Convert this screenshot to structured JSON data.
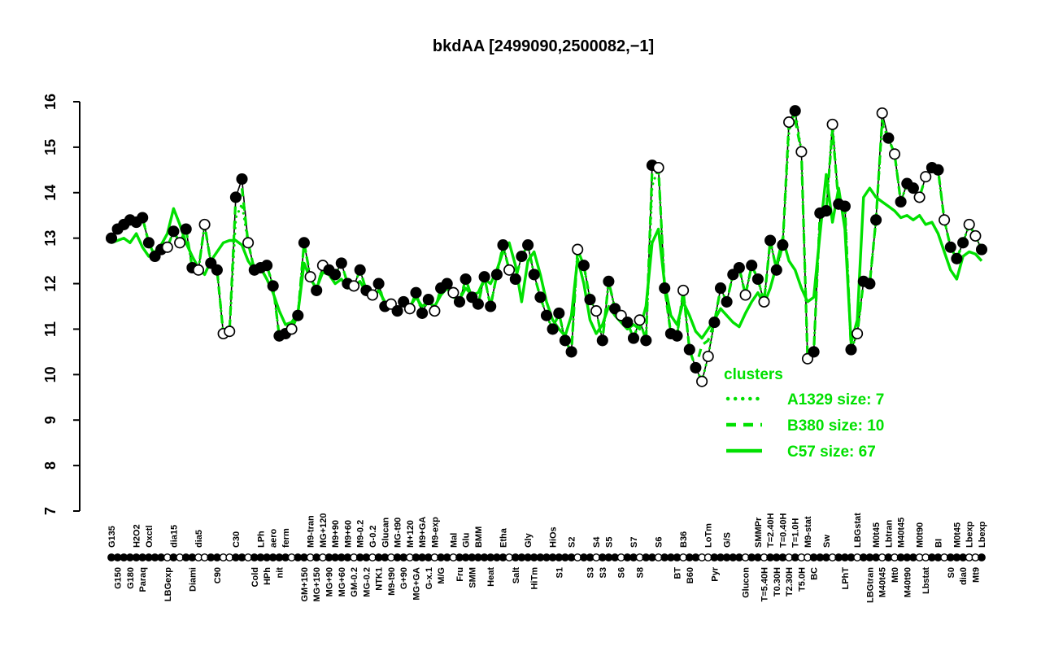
{
  "title": "bkdAA [2499090,2500082,−1]",
  "colors": {
    "cluster_green": "#00E000",
    "ink": "#000000",
    "background": "#FFFFFF"
  },
  "legend": {
    "title": "clusters",
    "position": "right-lower",
    "entries": [
      {
        "label": "A1329 size: 7",
        "style": "dotted",
        "cluster": "A1329",
        "size": 7
      },
      {
        "label": "B380 size: 10",
        "style": "dashed",
        "cluster": "B380",
        "size": 10
      },
      {
        "label": "C57 size: 67",
        "style": "solid",
        "cluster": "C57",
        "size": 67
      }
    ]
  },
  "chart_data": {
    "type": "line",
    "title": "bkdAA [2499090,2500082,−1]",
    "ylabel": "",
    "xlabel": "",
    "ylim": [
      7,
      16
    ],
    "yticks": [
      7,
      8,
      9,
      10,
      11,
      12,
      13,
      14,
      15,
      16
    ],
    "grid": false,
    "x_mode": "categorical-index",
    "marker_legend": "filled and open circles along the curve and condition axis",
    "conditions": [
      {
        "l": "G135",
        "s": "a",
        "v": 13.0,
        "o": 0
      },
      {
        "l": "G150",
        "s": "b",
        "v": 13.2,
        "o": 0
      },
      {
        "l": "",
        "s": "a",
        "v": 13.3,
        "o": 0
      },
      {
        "l": "G180",
        "s": "b",
        "v": 13.4,
        "o": 0
      },
      {
        "l": "H2O2",
        "s": "a",
        "v": 13.35,
        "o": 0
      },
      {
        "l": "Paraq",
        "s": "b",
        "v": 13.45,
        "o": 0
      },
      {
        "l": "Oxctl",
        "s": "a",
        "v": 12.9,
        "o": 0
      },
      {
        "l": "",
        "s": "b",
        "v": 12.6,
        "o": 0
      },
      {
        "l": "",
        "s": "a",
        "v": 12.75,
        "o": 0
      },
      {
        "l": "LBGexp",
        "s": "b",
        "v": 12.8,
        "o": 1
      },
      {
        "l": "dia15",
        "s": "a",
        "v": 13.15,
        "o": 0
      },
      {
        "l": "",
        "s": "b",
        "v": 12.9,
        "o": 1
      },
      {
        "l": "",
        "s": "a",
        "v": 13.2,
        "o": 0
      },
      {
        "l": "Diami",
        "s": "b",
        "v": 12.35,
        "o": 0
      },
      {
        "l": "dia5",
        "s": "a",
        "v": 12.3,
        "o": 1
      },
      {
        "l": "",
        "s": "b",
        "v": 13.3,
        "o": 1
      },
      {
        "l": "",
        "s": "a",
        "v": 12.45,
        "o": 0
      },
      {
        "l": "C90",
        "s": "b",
        "v": 12.3,
        "o": 0
      },
      {
        "l": "",
        "s": "a",
        "v": 10.9,
        "o": 1
      },
      {
        "l": "",
        "s": "b",
        "v": 10.95,
        "o": 1
      },
      {
        "l": "C30",
        "s": "a",
        "v": 13.9,
        "o": 0
      },
      {
        "l": "",
        "s": "b",
        "v": 14.3,
        "o": 0
      },
      {
        "l": "",
        "s": "a",
        "v": 12.9,
        "o": 1
      },
      {
        "l": "Cold",
        "s": "b",
        "v": 12.3,
        "o": 0
      },
      {
        "l": "LPh",
        "s": "a",
        "v": 12.35,
        "o": 0
      },
      {
        "l": "HPh",
        "s": "b",
        "v": 12.4,
        "o": 0
      },
      {
        "l": "aero",
        "s": "a",
        "v": 11.95,
        "o": 0
      },
      {
        "l": "nit",
        "s": "b",
        "v": 10.85,
        "o": 0
      },
      {
        "l": "ferm",
        "s": "a",
        "v": 10.9,
        "o": 0
      },
      {
        "l": "",
        "s": "b",
        "v": 11.0,
        "o": 1
      },
      {
        "l": "",
        "s": "a",
        "v": 11.3,
        "o": 0
      },
      {
        "l": "GM+150",
        "s": "b",
        "v": 12.9,
        "o": 0
      },
      {
        "l": "M9-tran",
        "s": "a",
        "v": 12.15,
        "o": 1
      },
      {
        "l": "MG+150",
        "s": "b",
        "v": 11.85,
        "o": 0
      },
      {
        "l": "MG+120",
        "s": "a",
        "v": 12.4,
        "o": 1
      },
      {
        "l": "MG+90",
        "s": "b",
        "v": 12.3,
        "o": 0
      },
      {
        "l": "M9+90",
        "s": "a",
        "v": 12.2,
        "o": 0
      },
      {
        "l": "MG+60",
        "s": "b",
        "v": 12.45,
        "o": 0
      },
      {
        "l": "M9+60",
        "s": "a",
        "v": 12.0,
        "o": 0
      },
      {
        "l": "GM-0.2",
        "s": "b",
        "v": 11.95,
        "o": 1
      },
      {
        "l": "M9-0.2",
        "s": "a",
        "v": 12.3,
        "o": 0
      },
      {
        "l": "MG-0.2",
        "s": "b",
        "v": 11.85,
        "o": 0
      },
      {
        "l": "G-0.2",
        "s": "a",
        "v": 11.75,
        "o": 1
      },
      {
        "l": "NTK1",
        "s": "b",
        "v": 12.0,
        "o": 0
      },
      {
        "l": "Glucan",
        "s": "a",
        "v": 11.5,
        "o": 0
      },
      {
        "l": "M9-t90",
        "s": "b",
        "v": 11.55,
        "o": 1
      },
      {
        "l": "MG-t90",
        "s": "a",
        "v": 11.4,
        "o": 0
      },
      {
        "l": "G+90",
        "s": "b",
        "v": 11.6,
        "o": 0
      },
      {
        "l": "M+120",
        "s": "a",
        "v": 11.45,
        "o": 1
      },
      {
        "l": "MG+GA",
        "s": "b",
        "v": 11.8,
        "o": 0
      },
      {
        "l": "M9+GA",
        "s": "a",
        "v": 11.35,
        "o": 0
      },
      {
        "l": "G-x.1",
        "s": "b",
        "v": 11.65,
        "o": 0
      },
      {
        "l": "M9-exp",
        "s": "a",
        "v": 11.4,
        "o": 1
      },
      {
        "l": "M/G",
        "s": "b",
        "v": 11.9,
        "o": 0
      },
      {
        "l": "",
        "s": "a",
        "v": 12.0,
        "o": 0
      },
      {
        "l": "Mal",
        "s": "a",
        "v": 11.8,
        "o": 1
      },
      {
        "l": "Fru",
        "s": "b",
        "v": 11.6,
        "o": 0
      },
      {
        "l": "Glu",
        "s": "a",
        "v": 12.1,
        "o": 0
      },
      {
        "l": "SMM",
        "s": "b",
        "v": 11.7,
        "o": 0
      },
      {
        "l": "BMM",
        "s": "a",
        "v": 11.55,
        "o": 0
      },
      {
        "l": "",
        "s": "b",
        "v": 12.15,
        "o": 0
      },
      {
        "l": "Heat",
        "s": "b",
        "v": 11.5,
        "o": 0
      },
      {
        "l": "",
        "s": "a",
        "v": 12.2,
        "o": 0
      },
      {
        "l": "Etha",
        "s": "a",
        "v": 12.85,
        "o": 0
      },
      {
        "l": "",
        "s": "b",
        "v": 12.3,
        "o": 1
      },
      {
        "l": "Salt",
        "s": "b",
        "v": 12.1,
        "o": 0
      },
      {
        "l": "",
        "s": "a",
        "v": 12.6,
        "o": 0
      },
      {
        "l": "Gly",
        "s": "a",
        "v": 12.85,
        "o": 0
      },
      {
        "l": "HiTm",
        "s": "b",
        "v": 12.2,
        "o": 0
      },
      {
        "l": "",
        "s": "a",
        "v": 11.7,
        "o": 0
      },
      {
        "l": "",
        "s": "b",
        "v": 11.3,
        "o": 0
      },
      {
        "l": "HiOs",
        "s": "a",
        "v": 11.0,
        "o": 0
      },
      {
        "l": "S1",
        "s": "b",
        "v": 11.35,
        "o": 0
      },
      {
        "l": "",
        "s": "a",
        "v": 10.75,
        "o": 0
      },
      {
        "l": "S2",
        "s": "a",
        "v": 10.5,
        "o": 0
      },
      {
        "l": "",
        "s": "b",
        "v": 12.75,
        "o": 1
      },
      {
        "l": "",
        "s": "a",
        "v": 12.4,
        "o": 0
      },
      {
        "l": "S3",
        "s": "b",
        "v": 11.65,
        "o": 0
      },
      {
        "l": "S4",
        "s": "a",
        "v": 11.4,
        "o": 1
      },
      {
        "l": "S3",
        "s": "b",
        "v": 10.75,
        "o": 0
      },
      {
        "l": "S5",
        "s": "a",
        "v": 12.05,
        "o": 0
      },
      {
        "l": "",
        "s": "b",
        "v": 11.45,
        "o": 0
      },
      {
        "l": "S6",
        "s": "b",
        "v": 11.3,
        "o": 1
      },
      {
        "l": "",
        "s": "a",
        "v": 11.15,
        "o": 0
      },
      {
        "l": "S7",
        "s": "a",
        "v": 10.8,
        "o": 0
      },
      {
        "l": "S8",
        "s": "b",
        "v": 11.2,
        "o": 1
      },
      {
        "l": "",
        "s": "a",
        "v": 10.75,
        "o": 0
      },
      {
        "l": "",
        "s": "b",
        "v": 14.6,
        "o": 0
      },
      {
        "l": "S6",
        "s": "a",
        "v": 14.55,
        "o": 1
      },
      {
        "l": "",
        "s": "b",
        "v": 11.9,
        "o": 0
      },
      {
        "l": "",
        "s": "a",
        "v": 10.9,
        "o": 0
      },
      {
        "l": "BT",
        "s": "b",
        "v": 10.85,
        "o": 0
      },
      {
        "l": "B36",
        "s": "a",
        "v": 11.85,
        "o": 1
      },
      {
        "l": "B60",
        "s": "b",
        "v": 10.55,
        "o": 0
      },
      {
        "l": "",
        "s": "a",
        "v": 10.15,
        "o": 0
      },
      {
        "l": "",
        "s": "b",
        "v": 9.85,
        "o": 1
      },
      {
        "l": "LoTm",
        "s": "a",
        "v": 10.4,
        "o": 1
      },
      {
        "l": "Pyr",
        "s": "b",
        "v": 11.15,
        "o": 0
      },
      {
        "l": "",
        "s": "a",
        "v": 11.9,
        "o": 0
      },
      {
        "l": "G/S",
        "s": "a",
        "v": 11.6,
        "o": 0
      },
      {
        "l": "",
        "s": "b",
        "v": 12.2,
        "o": 0
      },
      {
        "l": "",
        "s": "a",
        "v": 12.35,
        "o": 0
      },
      {
        "l": "Glucon",
        "s": "b",
        "v": 11.75,
        "o": 1
      },
      {
        "l": "",
        "s": "a",
        "v": 12.4,
        "o": 0
      },
      {
        "l": "SMMPr",
        "s": "a",
        "v": 12.1,
        "o": 0
      },
      {
        "l": "T=5.40H",
        "s": "b",
        "v": 11.6,
        "o": 1
      },
      {
        "l": "T=2.40H",
        "s": "a",
        "v": 12.95,
        "o": 0
      },
      {
        "l": "T0.30H",
        "s": "b",
        "v": 12.3,
        "o": 0
      },
      {
        "l": "T=0.40H",
        "s": "a",
        "v": 12.85,
        "o": 0
      },
      {
        "l": "T2.30H",
        "s": "b",
        "v": 15.55,
        "o": 1
      },
      {
        "l": "T=1.0H",
        "s": "a",
        "v": 15.8,
        "o": 0
      },
      {
        "l": "T5.0H",
        "s": "b",
        "v": 14.9,
        "o": 1
      },
      {
        "l": "M9-stat",
        "s": "a",
        "v": 10.35,
        "o": 1
      },
      {
        "l": "BC",
        "s": "b",
        "v": 10.5,
        "o": 0
      },
      {
        "l": "",
        "s": "a",
        "v": 13.55,
        "o": 0
      },
      {
        "l": "Sw",
        "s": "a",
        "v": 13.6,
        "o": 0
      },
      {
        "l": "",
        "s": "b",
        "v": 15.5,
        "o": 1
      },
      {
        "l": "",
        "s": "a",
        "v": 13.75,
        "o": 0
      },
      {
        "l": "LPhT",
        "s": "b",
        "v": 13.7,
        "o": 0
      },
      {
        "l": "",
        "s": "a",
        "v": 10.55,
        "o": 0
      },
      {
        "l": "LBGstat",
        "s": "a",
        "v": 10.9,
        "o": 1
      },
      {
        "l": "",
        "s": "b",
        "v": 12.05,
        "o": 0
      },
      {
        "l": "LBGtran",
        "s": "b",
        "v": 12.0,
        "o": 0
      },
      {
        "l": "M0t45",
        "s": "a",
        "v": 13.4,
        "o": 0
      },
      {
        "l": "M40t45",
        "s": "b",
        "v": 15.75,
        "o": 1
      },
      {
        "l": "Lbtran",
        "s": "a",
        "v": 15.2,
        "o": 0
      },
      {
        "l": "Mt0",
        "s": "b",
        "v": 14.85,
        "o": 1
      },
      {
        "l": "M40t45",
        "s": "a",
        "v": 13.8,
        "o": 0
      },
      {
        "l": "M40t90",
        "s": "b",
        "v": 14.2,
        "o": 0
      },
      {
        "l": "",
        "s": "a",
        "v": 14.1,
        "o": 0
      },
      {
        "l": "M0t90",
        "s": "a",
        "v": 13.9,
        "o": 1
      },
      {
        "l": "Lbstat",
        "s": "b",
        "v": 14.35,
        "o": 1
      },
      {
        "l": "",
        "s": "a",
        "v": 14.55,
        "o": 0
      },
      {
        "l": "BI",
        "s": "a",
        "v": 14.5,
        "o": 0
      },
      {
        "l": "",
        "s": "b",
        "v": 13.4,
        "o": 1
      },
      {
        "l": "S0",
        "s": "b",
        "v": 12.8,
        "o": 0
      },
      {
        "l": "M0t45",
        "s": "a",
        "v": 12.55,
        "o": 0
      },
      {
        "l": "dia0",
        "s": "b",
        "v": 12.9,
        "o": 0
      },
      {
        "l": "Lbexp",
        "s": "a",
        "v": 13.3,
        "o": 1
      },
      {
        "l": "Mt9",
        "s": "b",
        "v": 13.05,
        "o": 1
      },
      {
        "l": "Lbexp",
        "s": "a",
        "v": 12.75,
        "o": 0
      }
    ],
    "series": [
      {
        "name": "bkdAA",
        "role": "gene",
        "type": "line+markers",
        "color": "#000000",
        "values_from": "conditions"
      },
      {
        "name": "A1329",
        "role": "cluster",
        "style": "dotted",
        "size": 7,
        "follows": "gene",
        "deltas": {
          "20": -0.45,
          "21": -0.55,
          "87": -0.45,
          "109": -0.2,
          "124": -0.25
        }
      },
      {
        "name": "B380",
        "role": "cluster",
        "style": "dashed",
        "size": 10,
        "follows": "gene",
        "deltas": {
          "21": -0.2,
          "87": -0.1,
          "95": 0.8,
          "96": 0.35,
          "110": -0.2,
          "116": -0.1,
          "124": -0.15
        }
      },
      {
        "name": "C57",
        "role": "cluster",
        "style": "solid",
        "size": 67,
        "values": [
          12.9,
          12.95,
          13.0,
          12.9,
          13.1,
          12.8,
          12.6,
          12.7,
          12.85,
          13.1,
          13.65,
          13.3,
          12.9,
          12.6,
          12.35,
          12.2,
          12.5,
          12.7,
          12.9,
          12.95,
          12.95,
          12.85,
          12.5,
          12.3,
          12.35,
          12.1,
          11.8,
          11.4,
          11.1,
          11.15,
          11.35,
          12.45,
          12.1,
          11.9,
          12.25,
          12.2,
          12.0,
          12.1,
          11.9,
          11.95,
          12.05,
          11.8,
          11.7,
          11.85,
          11.6,
          11.5,
          11.45,
          11.55,
          11.5,
          11.7,
          11.5,
          11.6,
          11.5,
          11.75,
          11.9,
          11.7,
          11.65,
          11.9,
          11.75,
          11.8,
          12.1,
          12.0,
          12.3,
          12.7,
          12.9,
          12.4,
          11.6,
          12.5,
          12.7,
          12.2,
          11.6,
          11.2,
          11.0,
          10.85,
          11.3,
          12.55,
          12.0,
          11.2,
          10.9,
          11.1,
          11.5,
          11.3,
          11.15,
          11.0,
          11.1,
          11.0,
          11.5,
          12.9,
          13.2,
          12.0,
          11.3,
          11.1,
          11.6,
          11.3,
          10.95,
          10.8,
          11.0,
          11.2,
          11.45,
          11.3,
          11.15,
          11.05,
          11.35,
          11.6,
          11.8,
          11.55,
          11.9,
          12.4,
          13.0,
          12.5,
          12.3,
          11.9,
          11.6,
          11.7,
          13.1,
          14.4,
          13.35,
          14.1,
          13.2,
          10.7,
          11.2,
          13.9,
          14.1,
          13.9,
          13.8,
          13.7,
          13.6,
          13.45,
          13.5,
          13.4,
          13.5,
          13.3,
          13.35,
          13.1,
          12.7,
          12.3,
          12.1,
          12.6,
          12.7,
          12.65,
          12.5
        ]
      }
    ]
  }
}
